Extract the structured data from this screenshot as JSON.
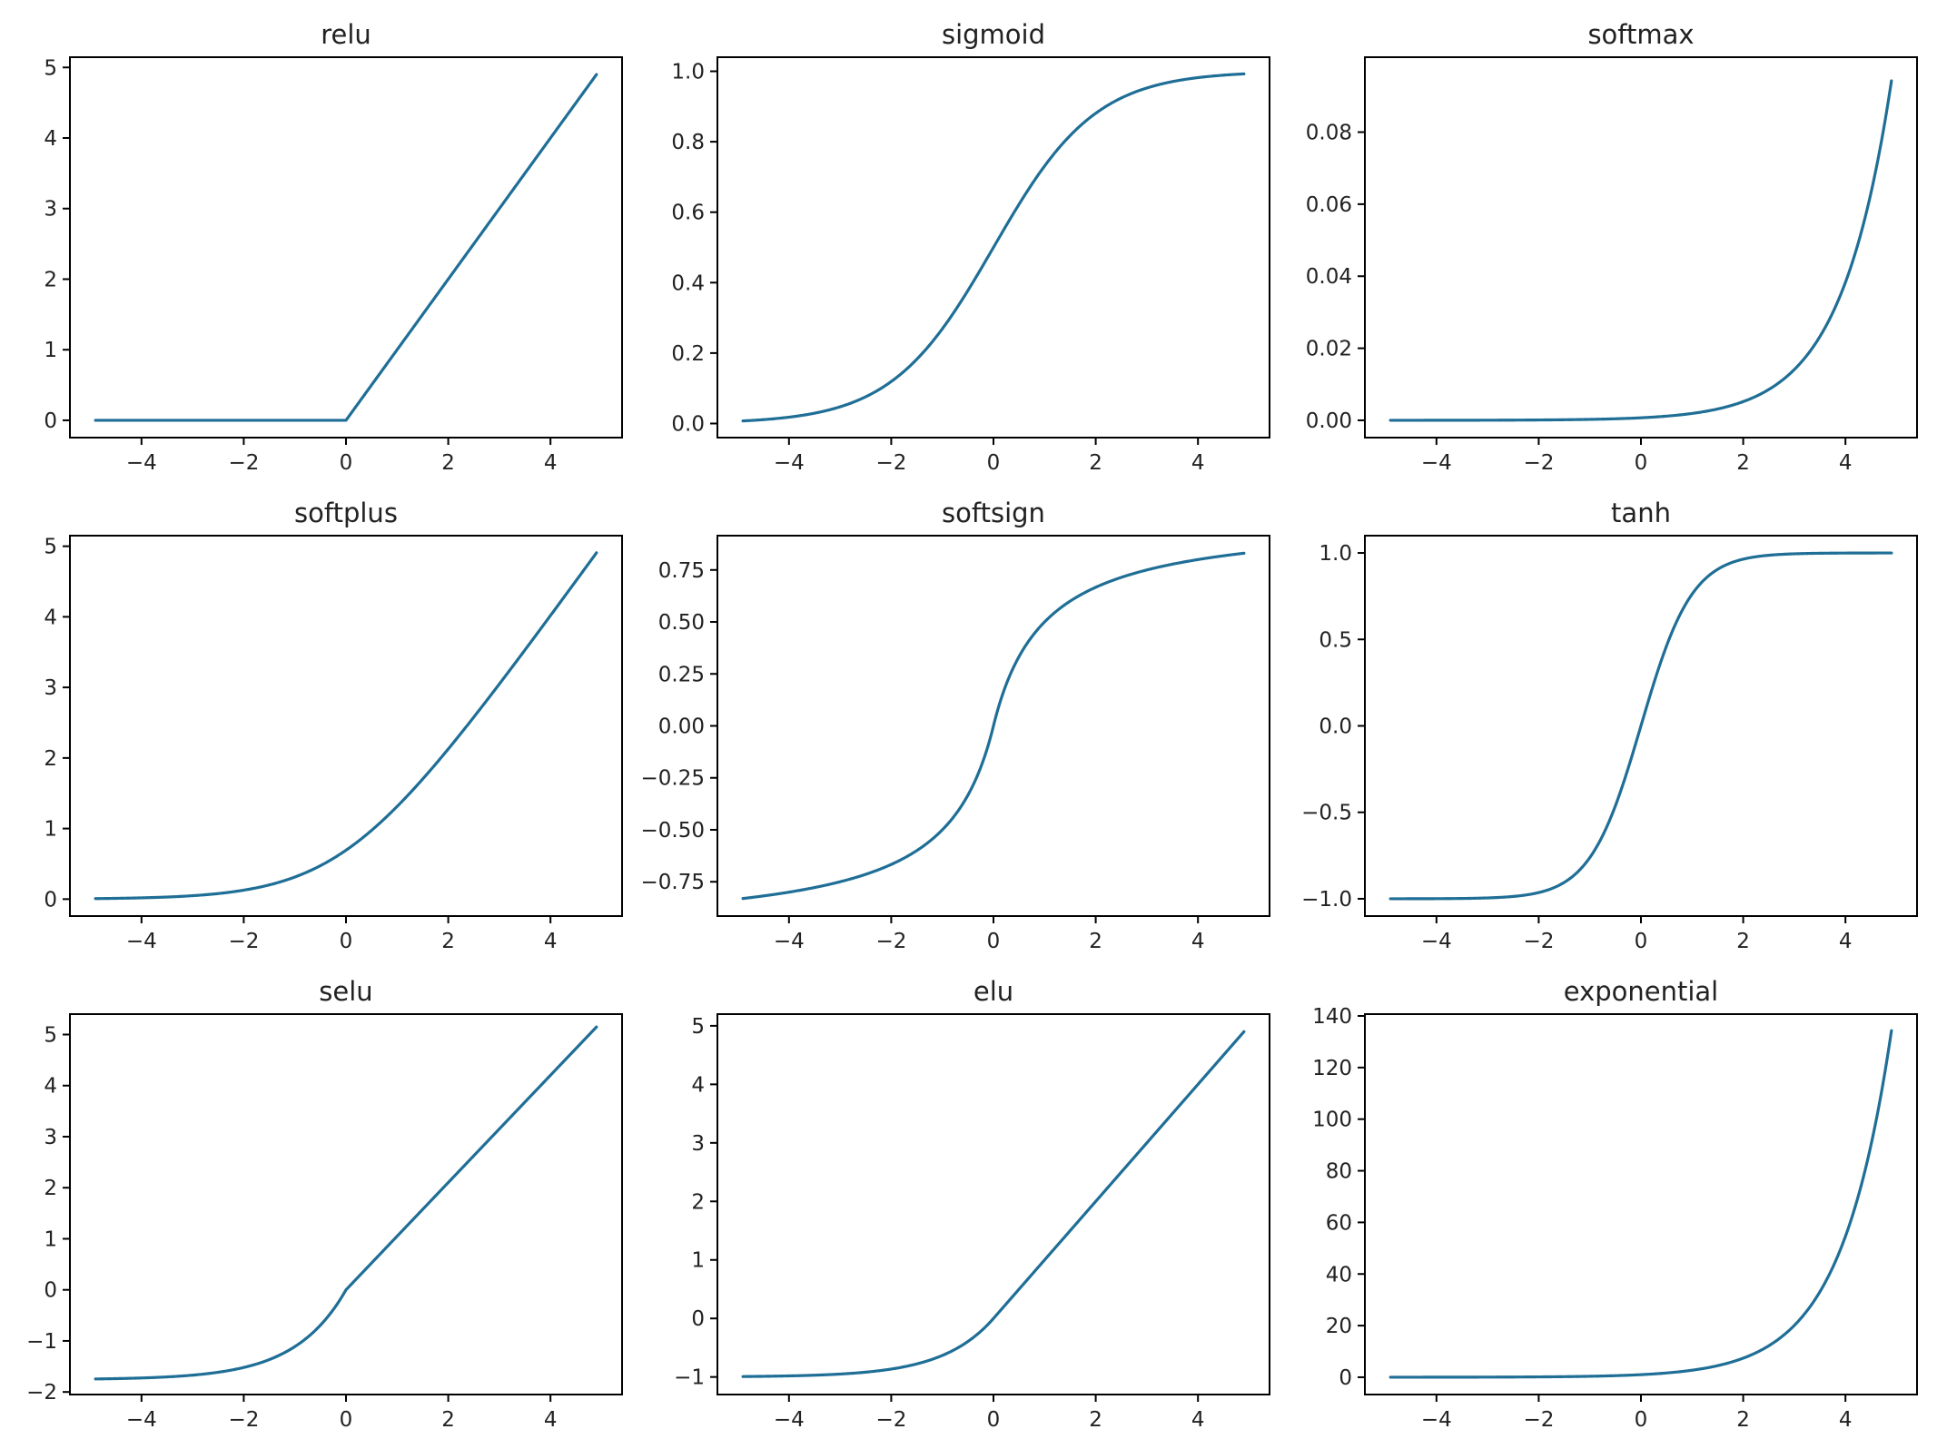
{
  "style": {
    "line_color": "#1f6e96",
    "axes_color": "#000000",
    "background": "#ffffff"
  },
  "chart_data": [
    {
      "type": "line",
      "title": "relu",
      "function": "relu",
      "x_range": [
        -4.9,
        4.9
      ],
      "xlim": [
        -5.4,
        5.4
      ],
      "ylim": [
        -0.245,
        5.145
      ],
      "xticks": [
        -4,
        -2,
        0,
        2,
        4
      ],
      "xtick_labels": [
        "−4",
        "−2",
        "0",
        "2",
        "4"
      ],
      "yticks": [
        0,
        1,
        2,
        3,
        4,
        5
      ],
      "ytick_labels": [
        "0",
        "1",
        "2",
        "3",
        "4",
        "5"
      ],
      "xlabel": "",
      "ylabel": "",
      "grid": false
    },
    {
      "type": "line",
      "title": "sigmoid",
      "function": "sigmoid",
      "x_range": [
        -4.9,
        4.9
      ],
      "xlim": [
        -5.4,
        5.4
      ],
      "ylim": [
        -0.04,
        1.04
      ],
      "xticks": [
        -4,
        -2,
        0,
        2,
        4
      ],
      "xtick_labels": [
        "−4",
        "−2",
        "0",
        "2",
        "4"
      ],
      "yticks": [
        0,
        0.2,
        0.4,
        0.6,
        0.8,
        1.0
      ],
      "ytick_labels": [
        "0.0",
        "0.2",
        "0.4",
        "0.6",
        "0.8",
        "1.0"
      ],
      "xlabel": "",
      "ylabel": "",
      "grid": false
    },
    {
      "type": "line",
      "title": "softmax",
      "function": "softmax",
      "x_range": [
        -4.9,
        4.9
      ],
      "xlim": [
        -5.4,
        5.4
      ],
      "ylim": [
        -0.0048,
        0.1008
      ],
      "xticks": [
        -4,
        -2,
        0,
        2,
        4
      ],
      "xtick_labels": [
        "−4",
        "−2",
        "0",
        "2",
        "4"
      ],
      "yticks": [
        0,
        0.02,
        0.04,
        0.06,
        0.08
      ],
      "ytick_labels": [
        "0.00",
        "0.02",
        "0.04",
        "0.06",
        "0.08"
      ],
      "xlabel": "",
      "ylabel": "",
      "grid": false
    },
    {
      "type": "line",
      "title": "softplus",
      "function": "softplus",
      "x_range": [
        -4.9,
        4.9
      ],
      "xlim": [
        -5.4,
        5.4
      ],
      "ylim": [
        -0.24,
        5.15
      ],
      "xticks": [
        -4,
        -2,
        0,
        2,
        4
      ],
      "xtick_labels": [
        "−4",
        "−2",
        "0",
        "2",
        "4"
      ],
      "yticks": [
        0,
        1,
        2,
        3,
        4,
        5
      ],
      "ytick_labels": [
        "0",
        "1",
        "2",
        "3",
        "4",
        "5"
      ],
      "xlabel": "",
      "ylabel": "",
      "grid": false
    },
    {
      "type": "line",
      "title": "softsign",
      "function": "softsign",
      "x_range": [
        -4.9,
        4.9
      ],
      "xlim": [
        -5.4,
        5.4
      ],
      "ylim": [
        -0.915,
        0.915
      ],
      "xticks": [
        -4,
        -2,
        0,
        2,
        4
      ],
      "xtick_labels": [
        "−4",
        "−2",
        "0",
        "2",
        "4"
      ],
      "yticks": [
        -0.75,
        -0.5,
        -0.25,
        0,
        0.25,
        0.5,
        0.75
      ],
      "ytick_labels": [
        "−0.75",
        "−0.50",
        "−0.25",
        "0.00",
        "0.25",
        "0.50",
        "0.75"
      ],
      "xlabel": "",
      "ylabel": "",
      "grid": false
    },
    {
      "type": "line",
      "title": "tanh",
      "function": "tanh",
      "x_range": [
        -4.9,
        4.9
      ],
      "xlim": [
        -5.4,
        5.4
      ],
      "ylim": [
        -1.1,
        1.1
      ],
      "xticks": [
        -4,
        -2,
        0,
        2,
        4
      ],
      "xtick_labels": [
        "−4",
        "−2",
        "0",
        "2",
        "4"
      ],
      "yticks": [
        -1,
        -0.5,
        0,
        0.5,
        1
      ],
      "ytick_labels": [
        "−1.0",
        "−0.5",
        "0.0",
        "0.5",
        "1.0"
      ],
      "xlabel": "",
      "ylabel": "",
      "grid": false
    },
    {
      "type": "line",
      "title": "selu",
      "function": "selu",
      "x_range": [
        -4.9,
        4.9
      ],
      "xlim": [
        -5.4,
        5.4
      ],
      "ylim": [
        -2.05,
        5.4
      ],
      "xticks": [
        -4,
        -2,
        0,
        2,
        4
      ],
      "xtick_labels": [
        "−4",
        "−2",
        "0",
        "2",
        "4"
      ],
      "yticks": [
        -2,
        -1,
        0,
        1,
        2,
        3,
        4,
        5
      ],
      "ytick_labels": [
        "−2",
        "−1",
        "0",
        "1",
        "2",
        "3",
        "4",
        "5"
      ],
      "xlabel": "",
      "ylabel": "",
      "grid": false
    },
    {
      "type": "line",
      "title": "elu",
      "function": "elu",
      "x_range": [
        -4.9,
        4.9
      ],
      "xlim": [
        -5.4,
        5.4
      ],
      "ylim": [
        -1.3,
        5.2
      ],
      "xticks": [
        -4,
        -2,
        0,
        2,
        4
      ],
      "xtick_labels": [
        "−4",
        "−2",
        "0",
        "2",
        "4"
      ],
      "yticks": [
        -1,
        0,
        1,
        2,
        3,
        4,
        5
      ],
      "ytick_labels": [
        "−1",
        "0",
        "1",
        "2",
        "3",
        "4",
        "5"
      ],
      "xlabel": "",
      "ylabel": "",
      "grid": false
    },
    {
      "type": "line",
      "title": "exponential",
      "function": "exponential",
      "x_range": [
        -4.9,
        4.9
      ],
      "xlim": [
        -5.4,
        5.4
      ],
      "ylim": [
        -6.7,
        140.7
      ],
      "xticks": [
        -4,
        -2,
        0,
        2,
        4
      ],
      "xtick_labels": [
        "−4",
        "−2",
        "0",
        "2",
        "4"
      ],
      "yticks": [
        0,
        20,
        40,
        60,
        80,
        100,
        120,
        140
      ],
      "ytick_labels": [
        "0",
        "20",
        "40",
        "60",
        "80",
        "100",
        "120",
        "140"
      ],
      "xlabel": "",
      "ylabel": "",
      "grid": false
    }
  ]
}
